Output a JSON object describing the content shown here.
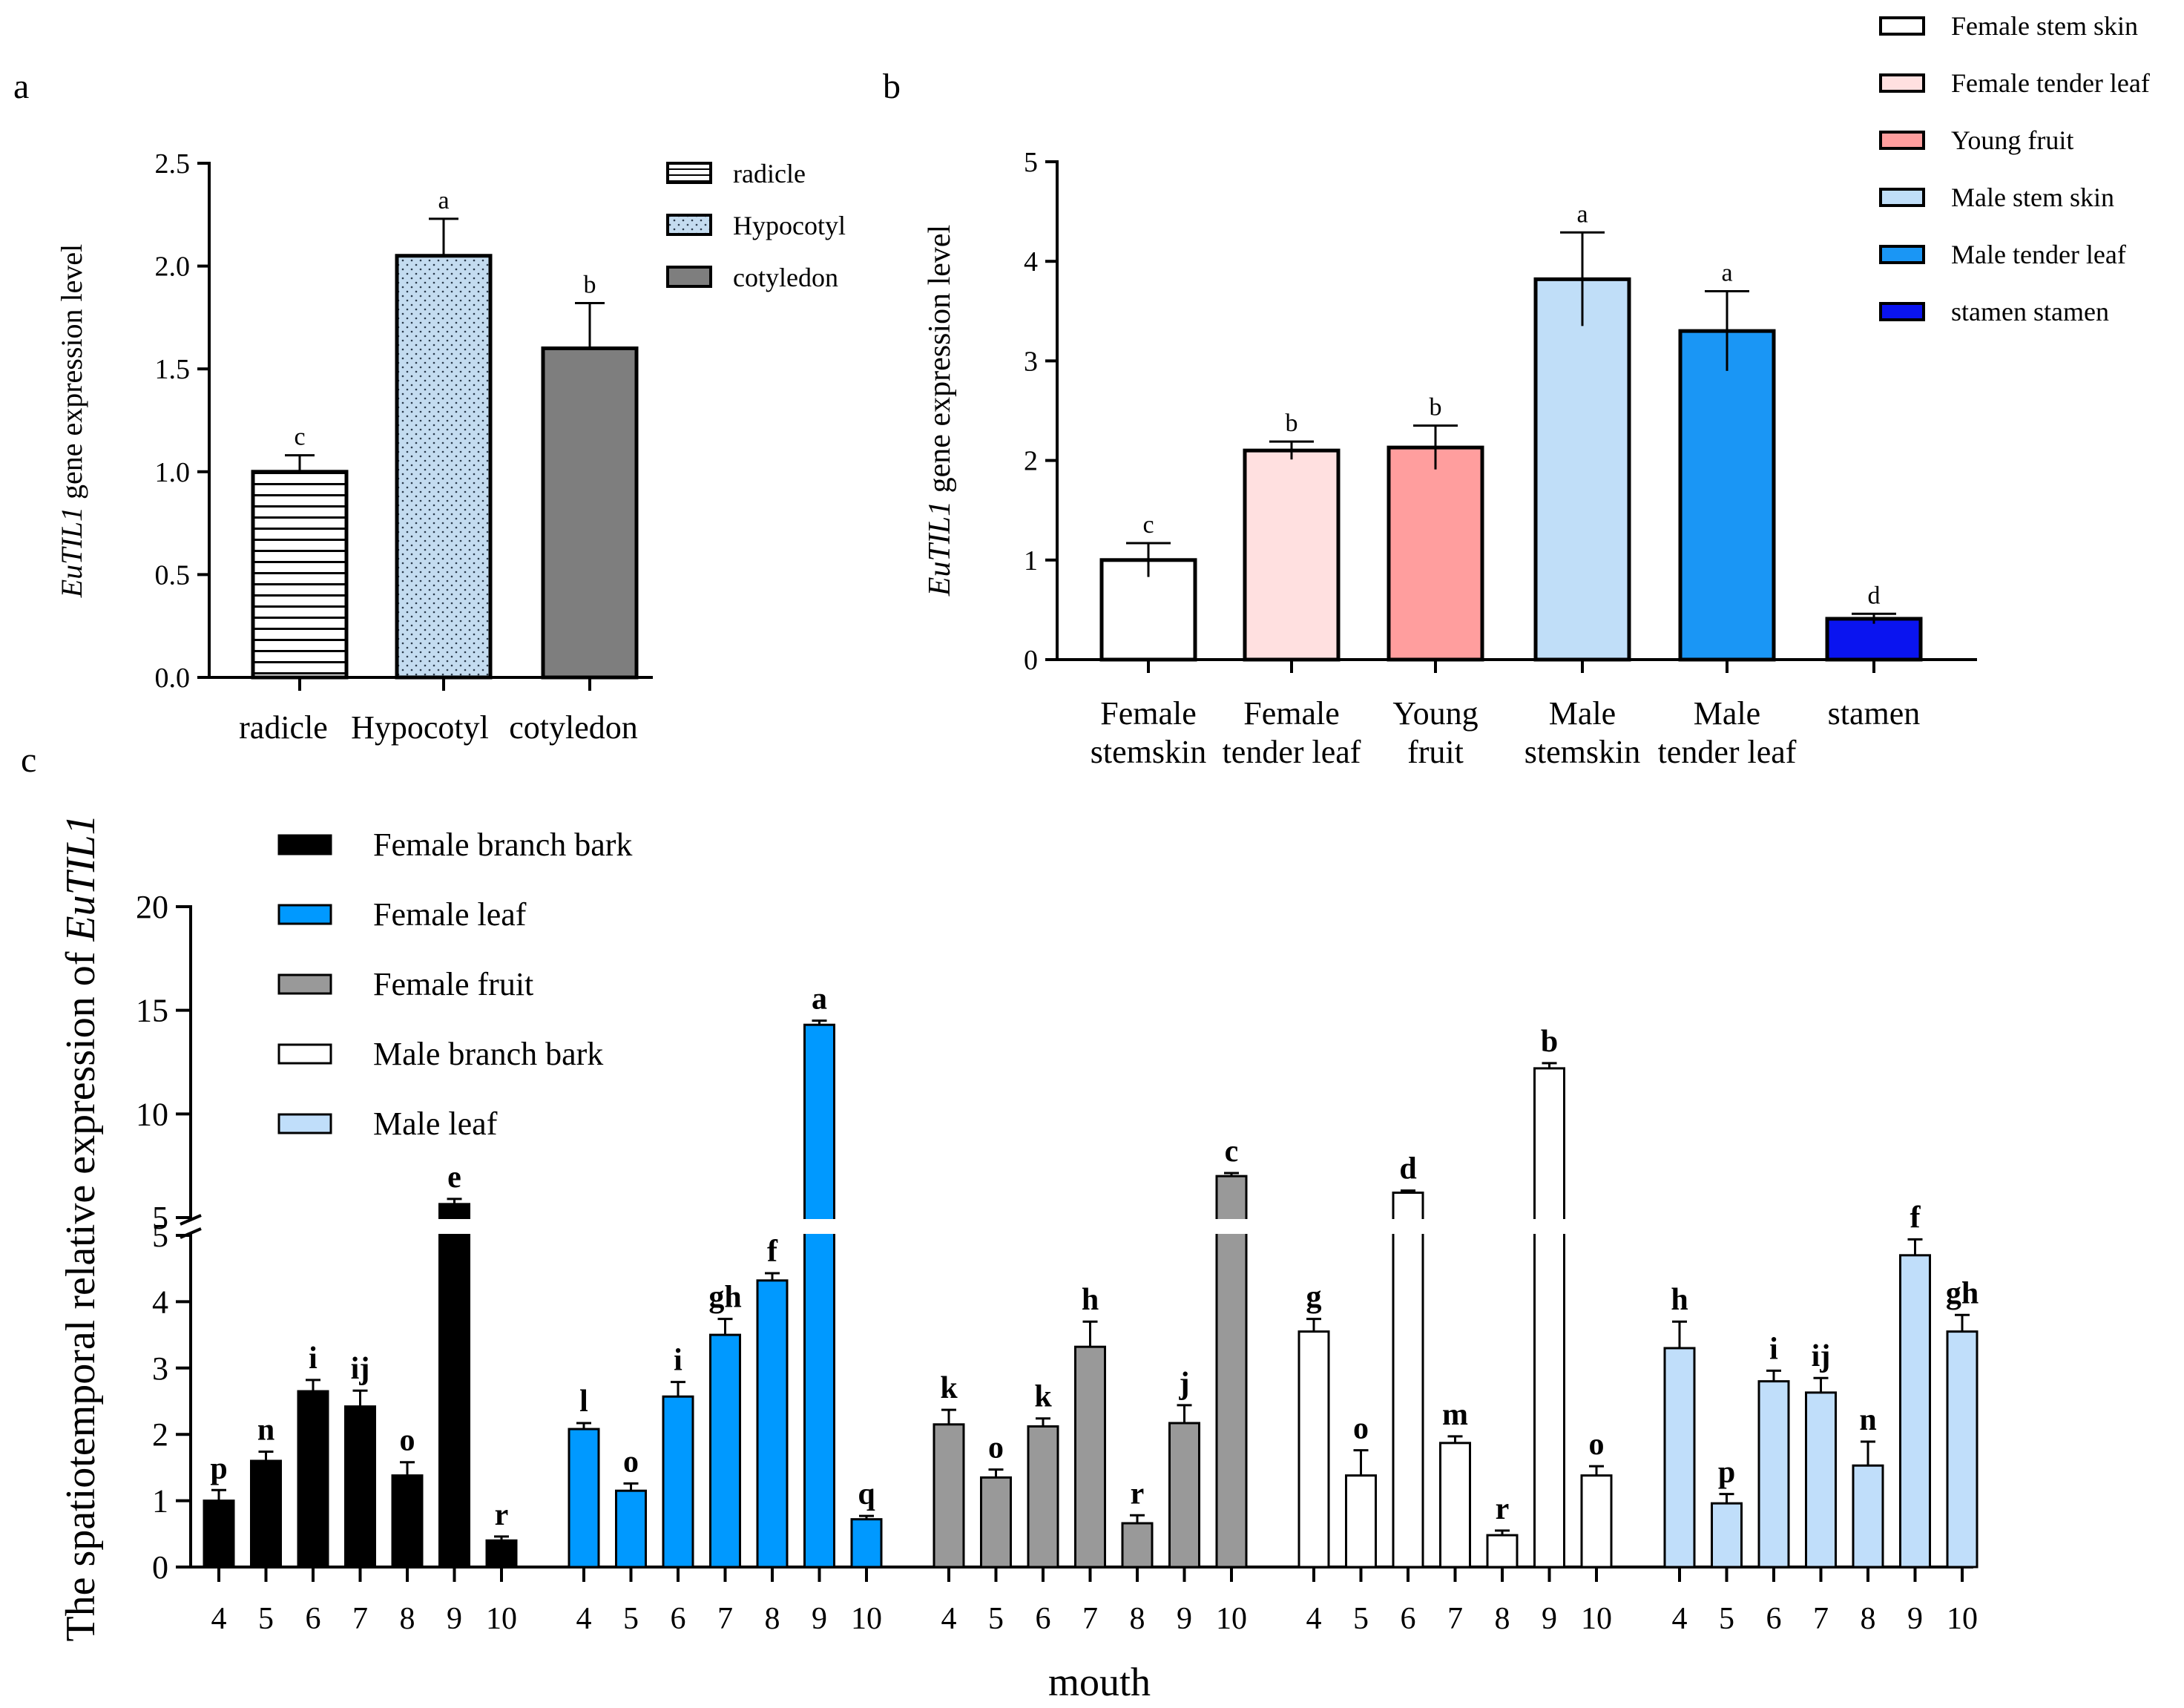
{
  "colors": {
    "black": "#000000",
    "female_leaf": "#0099FF",
    "female_fruit": "#999999",
    "male_bark": "#FFFFFF",
    "male_leaf": "#C0DEFA",
    "hypocotyl": "#C4DCF0",
    "cotyledon": "#7E7E7E",
    "female_tender_leaf": "#FFE0E0",
    "young_fruit": "#FF9E9E",
    "male_stem_skin": "#C0DEF8",
    "male_tender_leaf": "#1A96F5",
    "stamen": "#0A14F0"
  },
  "chart_data": [
    {
      "panel": "a",
      "type": "bar",
      "ylabel_italic": "EuTIL1",
      "ylabel_rest": " gene expression level",
      "ylim": [
        0,
        2.5
      ],
      "yticks": [
        "0.0",
        "0.5",
        "1.0",
        "1.5",
        "2.0",
        "2.5"
      ],
      "categories": [
        "radicle",
        "Hypocotyl",
        "cotyledon"
      ],
      "values": [
        1.0,
        2.05,
        1.6
      ],
      "errors": [
        0.08,
        0.18,
        0.22
      ],
      "letters": [
        "c",
        "a",
        "b"
      ],
      "legend": [
        "radicle",
        "Hypocotyl",
        "cotyledon"
      ],
      "legend_position": "top-right"
    },
    {
      "panel": "b",
      "type": "bar",
      "ylabel_italic": "EuTIL1",
      "ylabel_rest": " gene expression level",
      "ylim": [
        0,
        5
      ],
      "yticks": [
        "0",
        "1",
        "2",
        "3",
        "4",
        "5"
      ],
      "categories": [
        [
          "Female",
          "stemskin"
        ],
        [
          "Female",
          "tender leaf"
        ],
        [
          "Young",
          "fruit"
        ],
        [
          "Male",
          "stemskin"
        ],
        [
          "Male",
          "tender leaf"
        ],
        [
          "stamen"
        ]
      ],
      "values": [
        1.0,
        2.1,
        2.13,
        3.82,
        3.3,
        0.41
      ],
      "errors": [
        0.17,
        0.09,
        0.22,
        0.47,
        0.4,
        0.05
      ],
      "letters": [
        "c",
        "b",
        "b",
        "a",
        "a",
        "d"
      ],
      "legend": [
        "Female stem skin",
        "Female tender leaf",
        "Young fruit",
        "Male stem skin",
        "Male tender leaf",
        "stamen stamen"
      ],
      "legend_position": "top-right"
    },
    {
      "panel": "c",
      "type": "bar",
      "ylabel_plain": "The spatiotemporal relative expression of ",
      "ylabel_italic": "EuTIL1",
      "xlabel": "mouth",
      "axis_break": [
        5,
        5
      ],
      "lower_range": [
        0,
        5
      ],
      "upper_range": [
        5,
        20
      ],
      "yticks_lower": [
        "0",
        "1",
        "2",
        "3",
        "4",
        "5"
      ],
      "yticks_upper": [
        "5",
        "10",
        "15",
        "20"
      ],
      "categories": [
        "4",
        "5",
        "6",
        "7",
        "8",
        "9",
        "10"
      ],
      "legend_position": "top-left",
      "series": [
        {
          "name": "Female branch bark",
          "values": [
            1.0,
            1.6,
            2.65,
            2.42,
            1.38,
            5.65,
            0.4
          ],
          "errors": [
            0.16,
            0.14,
            0.17,
            0.24,
            0.2,
            0.25,
            0.06
          ],
          "letters": [
            "p",
            "n",
            "i",
            "ij",
            "o",
            "e",
            "r"
          ]
        },
        {
          "name": "Female leaf",
          "values": [
            2.08,
            1.15,
            2.57,
            3.5,
            4.32,
            14.3,
            0.72
          ],
          "errors": [
            0.09,
            0.11,
            0.22,
            0.24,
            0.11,
            0.2,
            0.05
          ],
          "letters": [
            "l",
            "o",
            "i",
            "gh",
            "f",
            "a",
            "q"
          ]
        },
        {
          "name": "Female fruit",
          "values": [
            2.15,
            1.35,
            2.12,
            3.32,
            0.66,
            2.17,
            7.0
          ],
          "errors": [
            0.22,
            0.12,
            0.12,
            0.38,
            0.12,
            0.27,
            0.15
          ],
          "letters": [
            "k",
            "o",
            "k",
            "h",
            "r",
            "j",
            "c"
          ]
        },
        {
          "name": "Male branch bark",
          "values": [
            3.55,
            1.38,
            6.2,
            1.87,
            0.48,
            12.2,
            1.38
          ],
          "errors": [
            0.19,
            0.38,
            0.1,
            0.1,
            0.07,
            0.25,
            0.14
          ],
          "letters": [
            "g",
            "o",
            "d",
            "m",
            "r",
            "b",
            "o"
          ]
        },
        {
          "name": "Male leaf",
          "values": [
            3.3,
            0.96,
            2.8,
            2.63,
            1.53,
            4.7,
            3.55
          ],
          "errors": [
            0.4,
            0.14,
            0.16,
            0.22,
            0.36,
            0.24,
            0.25
          ],
          "letters": [
            "h",
            "p",
            "i",
            "ij",
            "n",
            "f",
            "gh"
          ]
        }
      ]
    }
  ],
  "panel_labels": [
    "a",
    "b",
    "c"
  ]
}
